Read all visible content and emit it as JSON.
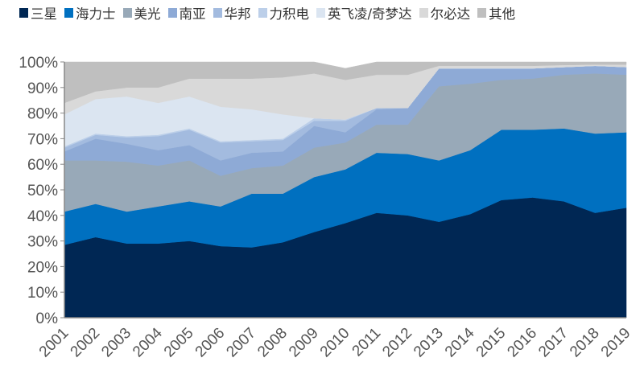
{
  "chart_data": {
    "type": "area",
    "stacked": true,
    "x": [
      "2001",
      "2002",
      "2003",
      "2004",
      "2005",
      "2006",
      "2007",
      "2008",
      "2009",
      "2010",
      "2011",
      "2012",
      "2013",
      "2014",
      "2015",
      "2016",
      "2017",
      "2018",
      "2019"
    ],
    "ylim": [
      0,
      100
    ],
    "yticks": [
      "0%",
      "10%",
      "20%",
      "30%",
      "40%",
      "50%",
      "60%",
      "70%",
      "80%",
      "90%",
      "100%"
    ],
    "grid": false,
    "legend_position": "top",
    "series": [
      {
        "name": "三星",
        "color": "#002754",
        "values": [
          28.5,
          31.5,
          29,
          29,
          30,
          28,
          27.5,
          29.5,
          33.5,
          37,
          41,
          40,
          37.5,
          40.5,
          46,
          47,
          45.5,
          41,
          43
        ]
      },
      {
        "name": "海力士",
        "color": "#0070c0",
        "values": [
          13,
          13,
          12.5,
          14.5,
          15.5,
          15.5,
          21,
          19,
          21.5,
          21,
          23.5,
          24,
          24,
          25,
          27.5,
          26.5,
          28.5,
          31,
          29.5
        ]
      },
      {
        "name": "美光",
        "color": "#98a9b8",
        "values": [
          20,
          17,
          19.5,
          16,
          16,
          12,
          10,
          11,
          11.5,
          10.5,
          11,
          11.5,
          29,
          26,
          19.5,
          20,
          21,
          23.5,
          22.5
        ]
      },
      {
        "name": "南亚",
        "color": "#8eaad6",
        "values": [
          3.5,
          8.5,
          7,
          6,
          6,
          6,
          6,
          5.5,
          8.5,
          4,
          6,
          6.5,
          7,
          6,
          4.5,
          4,
          3,
          3,
          3
        ]
      },
      {
        "name": "华邦",
        "color": "#a3bbdf",
        "values": [
          1.5,
          1.5,
          2.5,
          5.5,
          6,
          7,
          4.5,
          4.5,
          2,
          4.5,
          0.5,
          0,
          0,
          0,
          0,
          0,
          0,
          0,
          0
        ]
      },
      {
        "name": "力积电",
        "color": "#bccfe9",
        "values": [
          0.5,
          0.5,
          0.5,
          0.5,
          0.5,
          0.5,
          0.5,
          0.5,
          1,
          0.5,
          0,
          0,
          0,
          0,
          0,
          0,
          0,
          0,
          0
        ]
      },
      {
        "name": "英飞凌/奇梦达",
        "color": "#dbe5f1",
        "values": [
          12.5,
          13.5,
          15.5,
          12.5,
          12.5,
          13.5,
          12,
          9.5,
          0,
          0,
          0,
          0,
          0,
          0,
          0,
          0,
          0,
          0,
          0
        ]
      },
      {
        "name": "尔必达",
        "color": "#d9d9d9",
        "values": [
          4.5,
          3,
          3.5,
          6,
          7,
          11,
          12,
          14.5,
          17.5,
          15.5,
          13,
          13,
          1,
          1,
          1,
          1,
          0.8,
          0.5,
          1
        ]
      },
      {
        "name": "其他",
        "color": "#bfbfbf",
        "values": [
          16,
          11.5,
          10,
          10,
          6.5,
          6.5,
          6.5,
          6,
          4.5,
          4.5,
          5,
          5,
          1.5,
          1.5,
          1.5,
          1.5,
          1.2,
          1,
          1
        ]
      }
    ]
  }
}
